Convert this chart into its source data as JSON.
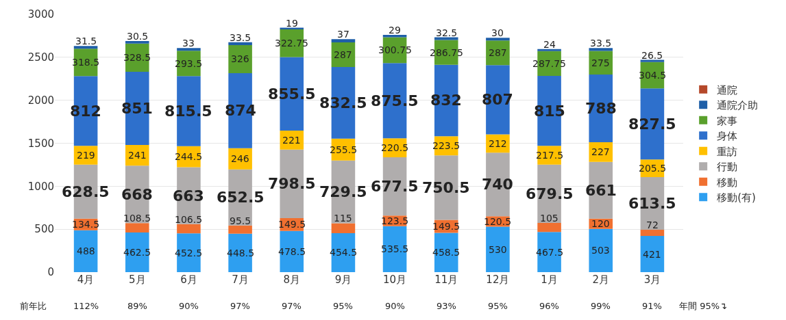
{
  "chart_data": {
    "type": "bar",
    "stacked": true,
    "categories": [
      "4月",
      "5月",
      "6月",
      "7月",
      "8月",
      "9月",
      "10月",
      "11月",
      "12月",
      "1月",
      "2月",
      "3月"
    ],
    "series": [
      {
        "name": "移動(有)",
        "color": "#2e9ff0",
        "values": [
          488,
          462.5,
          452.5,
          448.5,
          478.5,
          454.5,
          535.5,
          458.5,
          530,
          467.5,
          503,
          421
        ]
      },
      {
        "name": "移動",
        "color": "#f07030",
        "values": [
          134.5,
          108.5,
          106.5,
          95.5,
          149.5,
          115,
          123.5,
          149.5,
          120.5,
          105,
          120,
          72
        ]
      },
      {
        "name": "行動",
        "color": "#b0adad",
        "values": [
          628.5,
          668,
          663,
          652.5,
          798.5,
          729.5,
          677.5,
          750.5,
          740,
          679.5,
          661,
          613.5
        ]
      },
      {
        "name": "重訪",
        "color": "#ffc000",
        "values": [
          219,
          241,
          244.5,
          246,
          221,
          255.5,
          220.5,
          223.5,
          212,
          217.5,
          227,
          205.5
        ]
      },
      {
        "name": "身体",
        "color": "#2e70cc",
        "values": [
          812,
          851,
          815.5,
          874,
          855.5,
          832.5,
          875.5,
          832,
          807,
          815,
          788,
          827.5
        ]
      },
      {
        "name": "家事",
        "color": "#5aa02c",
        "values": [
          318.5,
          328.5,
          293.5,
          326,
          322.75,
          287,
          300.75,
          286.75,
          287,
          287.75,
          275,
          304.5
        ]
      },
      {
        "name": "通院介助",
        "color": "#1f5fa8",
        "values": [
          31.5,
          30.5,
          33,
          33.5,
          19,
          37,
          29,
          32.5,
          30,
          24,
          33.5,
          26.5
        ]
      },
      {
        "name": "通院",
        "color": "#b5482a",
        "values": [
          null,
          null,
          null,
          null,
          null,
          null,
          null,
          null,
          null,
          null,
          null,
          null
        ]
      }
    ],
    "ylim": [
      0,
      3000
    ],
    "yticks": [
      0,
      500,
      1000,
      1500,
      2000,
      2500,
      3000
    ],
    "grid": "y",
    "legend": "right",
    "data_labels": true,
    "annotations": [
      "前年比",
      "112%",
      "89%",
      "90%",
      "97%",
      "97%",
      "95%",
      "90%",
      "93%",
      "95%",
      "96%",
      "99%",
      "91%",
      "年間 95%↴"
    ]
  }
}
